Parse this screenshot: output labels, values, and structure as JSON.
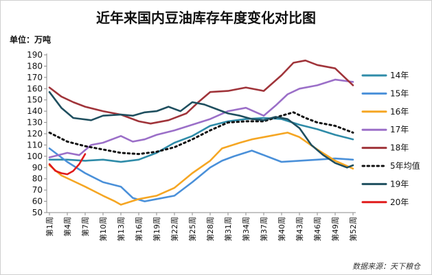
{
  "chart_data": {
    "type": "line",
    "title": "近年来国内豆油库存年度变化对比图",
    "unit_label": "单位：万吨",
    "source": "数据来源：天下粮仓",
    "ylim": [
      50,
      190
    ],
    "yticks": [
      50,
      60,
      70,
      80,
      90,
      100,
      110,
      120,
      130,
      140,
      150,
      160,
      170,
      180,
      190
    ],
    "x_labels": [
      "第1周",
      "第4周",
      "第7周",
      "第10周",
      "第13周",
      "第16周",
      "第19周",
      "第22周",
      "第25周",
      "第28周",
      "第31周",
      "第34周",
      "第37周",
      "第40周",
      "第43周",
      "第46周",
      "第49周",
      "第52周"
    ],
    "x_label_weeks": [
      1,
      4,
      7,
      10,
      13,
      16,
      19,
      22,
      25,
      28,
      31,
      34,
      37,
      40,
      43,
      46,
      49,
      52
    ],
    "legend_position": "right",
    "grid": false,
    "series": [
      {
        "name": "14年",
        "color": "#2e8ba8",
        "dash": false,
        "points": [
          [
            1,
            97
          ],
          [
            4,
            97
          ],
          [
            7,
            96
          ],
          [
            10,
            97
          ],
          [
            13,
            95
          ],
          [
            16,
            97
          ],
          [
            19,
            103
          ],
          [
            22,
            112
          ],
          [
            25,
            118
          ],
          [
            28,
            127
          ],
          [
            31,
            131
          ],
          [
            34,
            133
          ],
          [
            37,
            134
          ],
          [
            40,
            133
          ],
          [
            43,
            128
          ],
          [
            46,
            124
          ],
          [
            49,
            119
          ],
          [
            52,
            115
          ]
        ]
      },
      {
        "name": "15年",
        "color": "#4a90d9",
        "dash": false,
        "points": [
          [
            1,
            107
          ],
          [
            4,
            95
          ],
          [
            7,
            85
          ],
          [
            10,
            77
          ],
          [
            13,
            73
          ],
          [
            15,
            63
          ],
          [
            17,
            60
          ],
          [
            19,
            62
          ],
          [
            22,
            65
          ],
          [
            25,
            77
          ],
          [
            28,
            90
          ],
          [
            30,
            96
          ],
          [
            32,
            100
          ],
          [
            35,
            105
          ],
          [
            38,
            99
          ],
          [
            40,
            95
          ],
          [
            43,
            96
          ],
          [
            46,
            97
          ],
          [
            49,
            98
          ],
          [
            52,
            97
          ]
        ]
      },
      {
        "name": "16年",
        "color": "#f5a623",
        "dash": false,
        "points": [
          [
            1,
            92
          ],
          [
            3,
            83
          ],
          [
            5,
            78
          ],
          [
            7,
            73
          ],
          [
            10,
            65
          ],
          [
            12,
            60
          ],
          [
            13,
            57
          ],
          [
            16,
            62
          ],
          [
            19,
            65
          ],
          [
            22,
            72
          ],
          [
            25,
            85
          ],
          [
            28,
            96
          ],
          [
            30,
            107
          ],
          [
            33,
            112
          ],
          [
            35,
            115
          ],
          [
            38,
            118
          ],
          [
            41,
            121
          ],
          [
            43,
            117
          ],
          [
            46,
            106
          ],
          [
            49,
            96
          ],
          [
            52,
            89
          ]
        ]
      },
      {
        "name": "17年",
        "color": "#9b6fc8",
        "dash": false,
        "points": [
          [
            1,
            99
          ],
          [
            4,
            103
          ],
          [
            6,
            101
          ],
          [
            8,
            110
          ],
          [
            10,
            112
          ],
          [
            13,
            118
          ],
          [
            15,
            113
          ],
          [
            17,
            115
          ],
          [
            19,
            119
          ],
          [
            22,
            123
          ],
          [
            25,
            128
          ],
          [
            28,
            133
          ],
          [
            31,
            140
          ],
          [
            34,
            143
          ],
          [
            37,
            136
          ],
          [
            39,
            145
          ],
          [
            41,
            155
          ],
          [
            43,
            160
          ],
          [
            46,
            163
          ],
          [
            49,
            168
          ],
          [
            52,
            166
          ]
        ]
      },
      {
        "name": "18年",
        "color": "#a0343a",
        "dash": false,
        "points": [
          [
            1,
            161
          ],
          [
            3,
            153
          ],
          [
            5,
            148
          ],
          [
            7,
            144
          ],
          [
            10,
            140
          ],
          [
            13,
            137
          ],
          [
            16,
            131
          ],
          [
            18,
            129
          ],
          [
            21,
            132
          ],
          [
            24,
            138
          ],
          [
            26,
            148
          ],
          [
            28,
            157
          ],
          [
            31,
            158
          ],
          [
            34,
            161
          ],
          [
            37,
            158
          ],
          [
            40,
            172
          ],
          [
            42,
            183
          ],
          [
            44,
            185
          ],
          [
            46,
            181
          ],
          [
            49,
            178
          ],
          [
            52,
            163
          ]
        ]
      },
      {
        "name": "5年均值",
        "color": "#111111",
        "dash": true,
        "points": [
          [
            1,
            121
          ],
          [
            4,
            113
          ],
          [
            7,
            109
          ],
          [
            10,
            106
          ],
          [
            13,
            103
          ],
          [
            16,
            102
          ],
          [
            19,
            104
          ],
          [
            22,
            108
          ],
          [
            25,
            115
          ],
          [
            28,
            123
          ],
          [
            31,
            130
          ],
          [
            34,
            131
          ],
          [
            37,
            131
          ],
          [
            40,
            136
          ],
          [
            42,
            139
          ],
          [
            44,
            134
          ],
          [
            46,
            130
          ],
          [
            49,
            127
          ],
          [
            52,
            121
          ]
        ]
      },
      {
        "name": "19年",
        "color": "#1f4f5f",
        "dash": false,
        "points": [
          [
            1,
            157
          ],
          [
            3,
            143
          ],
          [
            5,
            134
          ],
          [
            8,
            132
          ],
          [
            10,
            136
          ],
          [
            13,
            137
          ],
          [
            15,
            136
          ],
          [
            17,
            139
          ],
          [
            19,
            140
          ],
          [
            21,
            144
          ],
          [
            23,
            140
          ],
          [
            25,
            148
          ],
          [
            27,
            146
          ],
          [
            29,
            142
          ],
          [
            31,
            138
          ],
          [
            33,
            136
          ],
          [
            35,
            133
          ],
          [
            37,
            132
          ],
          [
            39,
            135
          ],
          [
            41,
            133
          ],
          [
            43,
            125
          ],
          [
            45,
            110
          ],
          [
            47,
            101
          ],
          [
            49,
            94
          ],
          [
            51,
            90
          ],
          [
            52,
            92
          ]
        ]
      },
      {
        "name": "20年",
        "color": "#e01a1a",
        "dash": false,
        "points": [
          [
            1,
            93
          ],
          [
            2,
            87
          ],
          [
            3,
            85
          ],
          [
            4,
            84
          ],
          [
            5,
            87
          ],
          [
            6,
            93
          ],
          [
            7,
            102
          ]
        ]
      }
    ]
  }
}
